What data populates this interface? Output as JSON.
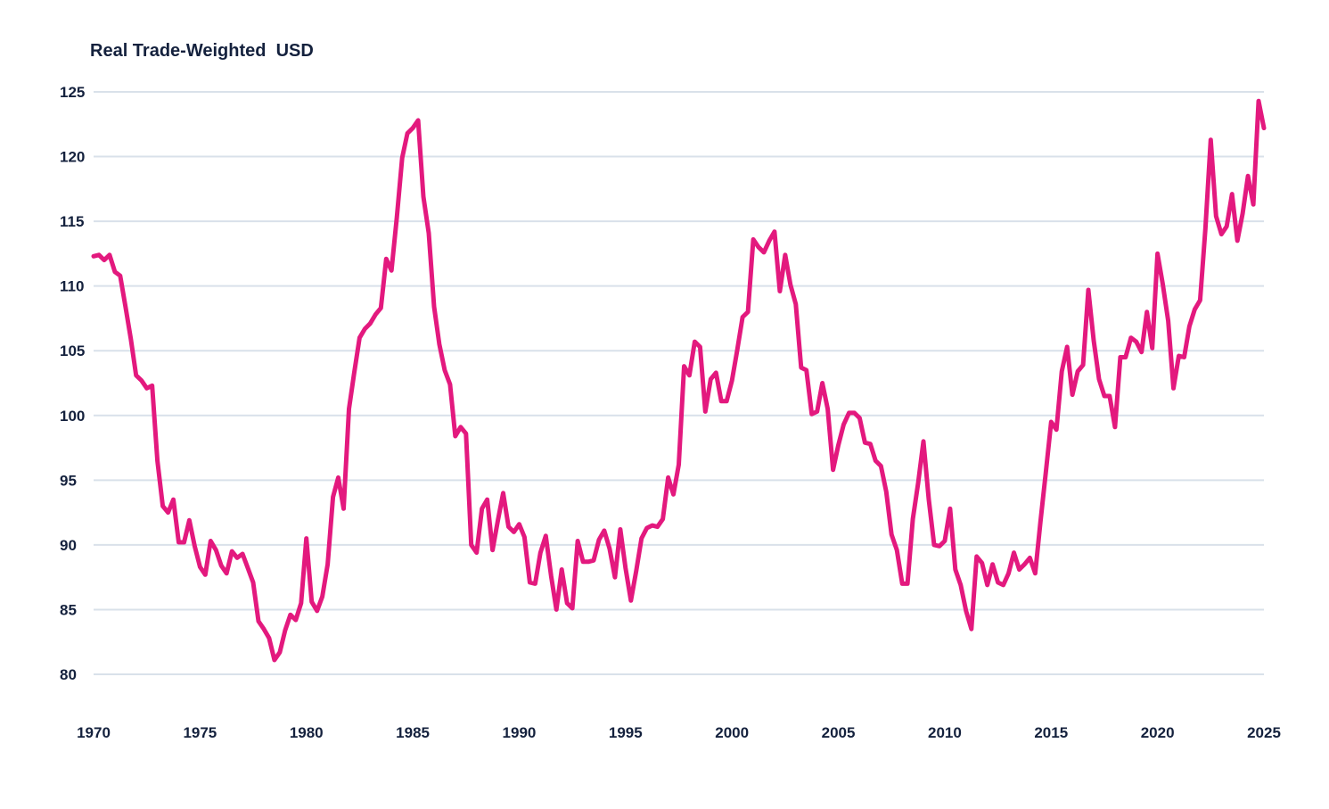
{
  "chart_data": {
    "type": "line",
    "title": "Real Trade-Weighted  USD",
    "xlabel": "",
    "ylabel": "",
    "xlim": [
      1970,
      2025
    ],
    "ylim": [
      80,
      125
    ],
    "x_ticks": [
      1970,
      1975,
      1980,
      1985,
      1990,
      1995,
      2000,
      2005,
      2010,
      2015,
      2020,
      2025
    ],
    "y_ticks": [
      80,
      85,
      90,
      95,
      100,
      105,
      110,
      115,
      120,
      125
    ],
    "grid": "horizontal",
    "legend": "none",
    "colors": {
      "line": "#e3197e",
      "grid": "#d9e1ea",
      "text": "#14213d"
    },
    "series": [
      {
        "x": [
          1970.0,
          1970.25,
          1970.5,
          1970.75,
          1971.0,
          1971.25,
          1971.5,
          1971.75,
          1972.0,
          1972.25,
          1972.5,
          1972.75,
          1973.0,
          1973.25,
          1973.5,
          1973.75,
          1974.0,
          1974.25,
          1974.5,
          1974.75,
          1975.0,
          1975.25,
          1975.5,
          1975.75,
          1976.0,
          1976.25,
          1976.5,
          1976.75,
          1977.0,
          1977.25,
          1977.5,
          1977.75,
          1978.0,
          1978.25,
          1978.5,
          1978.75,
          1979.0,
          1979.25,
          1979.5,
          1979.75,
          1980.0,
          1980.25,
          1980.5,
          1980.75,
          1981.0,
          1981.25,
          1981.5,
          1981.75,
          1982.0,
          1982.25,
          1982.5,
          1982.75,
          1983.0,
          1983.25,
          1983.5,
          1983.75,
          1984.0,
          1984.25,
          1984.5,
          1984.75,
          1985.0,
          1985.25,
          1985.5,
          1985.75,
          1986.0,
          1986.25,
          1986.5,
          1986.75,
          1987.0,
          1987.25,
          1987.5,
          1987.75,
          1988.0,
          1988.25,
          1988.5,
          1988.75,
          1989.0,
          1989.25,
          1989.5,
          1989.75,
          1990.0,
          1990.25,
          1990.5,
          1990.75,
          1991.0,
          1991.25,
          1991.5,
          1991.75,
          1992.0,
          1992.25,
          1992.5,
          1992.75,
          1993.0,
          1993.25,
          1993.5,
          1993.75,
          1994.0,
          1994.25,
          1994.5,
          1994.75,
          1995.0,
          1995.25,
          1995.5,
          1995.75,
          1996.0,
          1996.25,
          1996.5,
          1996.75,
          1997.0,
          1997.25,
          1997.5,
          1997.75,
          1998.0,
          1998.25,
          1998.5,
          1998.75,
          1999.0,
          1999.25,
          1999.5,
          1999.75,
          2000.0,
          2000.25,
          2000.5,
          2000.75,
          2001.0,
          2001.25,
          2001.5,
          2001.75,
          2002.0,
          2002.25,
          2002.5,
          2002.75,
          2003.0,
          2003.25,
          2003.5,
          2003.75,
          2004.0,
          2004.25,
          2004.5,
          2004.75,
          2005.0,
          2005.25,
          2005.5,
          2005.75,
          2006.0,
          2006.25,
          2006.5,
          2006.75,
          2007.0,
          2007.25,
          2007.5,
          2007.75,
          2008.0,
          2008.25,
          2008.5,
          2008.75,
          2009.0,
          2009.25,
          2009.5,
          2009.75,
          2010.0,
          2010.25,
          2010.5,
          2010.75,
          2011.0,
          2011.25,
          2011.5,
          2011.75,
          2012.0,
          2012.25,
          2012.5,
          2012.75,
          2013.0,
          2013.25,
          2013.5,
          2013.75,
          2014.0,
          2014.25,
          2014.5,
          2014.75,
          2015.0,
          2015.25,
          2015.5,
          2015.75,
          2016.0,
          2016.25,
          2016.5,
          2016.75,
          2017.0,
          2017.25,
          2017.5,
          2017.75,
          2018.0,
          2018.25,
          2018.5,
          2018.75,
          2019.0,
          2019.25,
          2019.5,
          2019.75,
          2020.0,
          2020.25,
          2020.5,
          2020.75,
          2021.0,
          2021.25,
          2021.5,
          2021.75,
          2022.0,
          2022.25,
          2022.5,
          2022.75,
          2023.0,
          2023.25,
          2023.5,
          2023.75,
          2024.0,
          2024.25,
          2024.5,
          2024.75,
          2025.0
        ],
        "values": [
          112.3,
          112.4,
          112.0,
          112.4,
          111.1,
          110.8,
          108.4,
          105.9,
          103.1,
          102.7,
          102.1,
          102.3,
          96.5,
          93.0,
          92.5,
          93.5,
          90.2,
          90.2,
          91.9,
          89.9,
          88.3,
          87.7,
          90.3,
          89.6,
          88.4,
          87.8,
          89.5,
          89.0,
          89.3,
          88.2,
          87.1,
          84.1,
          83.5,
          82.8,
          81.1,
          81.7,
          83.4,
          84.6,
          84.2,
          85.5,
          90.5,
          85.6,
          84.9,
          86.0,
          88.5,
          93.7,
          95.2,
          92.8,
          100.5,
          103.3,
          106.0,
          106.7,
          107.1,
          107.8,
          108.3,
          112.1,
          111.2,
          115.3,
          119.9,
          121.8,
          122.2,
          122.8,
          116.9,
          114.1,
          108.4,
          105.5,
          103.5,
          102.4,
          98.4,
          99.1,
          98.6,
          90.0,
          89.4,
          92.8,
          93.5,
          89.6,
          91.9,
          94.0,
          91.4,
          91.0,
          91.6,
          90.6,
          87.1,
          87.0,
          89.4,
          90.7,
          87.6,
          85.0,
          88.1,
          85.5,
          85.1,
          90.3,
          88.7,
          88.7,
          88.8,
          90.4,
          91.1,
          89.7,
          87.5,
          91.2,
          88.2,
          85.7,
          88.0,
          90.5,
          91.3,
          91.5,
          91.4,
          92.0,
          95.2,
          93.9,
          96.2,
          103.8,
          103.1,
          105.7,
          105.3,
          100.3,
          102.8,
          103.3,
          101.1,
          101.1,
          102.7,
          105.1,
          107.6,
          108.0,
          113.6,
          113.0,
          112.6,
          113.5,
          114.2,
          109.6,
          112.4,
          110.1,
          108.6,
          103.7,
          103.5,
          100.1,
          100.3,
          102.5,
          100.5,
          95.8,
          97.7,
          99.3,
          100.2,
          100.2,
          99.8,
          97.9,
          97.8,
          96.5,
          96.1,
          94.1,
          90.8,
          89.6,
          87.0,
          87.0,
          92.0,
          94.8,
          98.0,
          93.5,
          90.0,
          89.9,
          90.3,
          92.8,
          88.1,
          86.9,
          84.9,
          83.5,
          89.1,
          88.6,
          86.9,
          88.5,
          87.1,
          86.9,
          87.8,
          89.4,
          88.1,
          88.5,
          89.0,
          87.8,
          91.8,
          95.6,
          99.5,
          98.9,
          103.4,
          105.3,
          101.6,
          103.4,
          103.9,
          109.7,
          105.8,
          102.8,
          101.5,
          101.5,
          99.1,
          104.5,
          104.5,
          106.0,
          105.7,
          104.9,
          108.0,
          105.2,
          112.5,
          110.1,
          107.3,
          102.1,
          104.6,
          104.5,
          106.9,
          108.2,
          108.9,
          114.4,
          121.3,
          115.4,
          114.0,
          114.6,
          117.1,
          113.5,
          115.6,
          118.5,
          116.3,
          124.3,
          122.2
        ]
      }
    ]
  }
}
